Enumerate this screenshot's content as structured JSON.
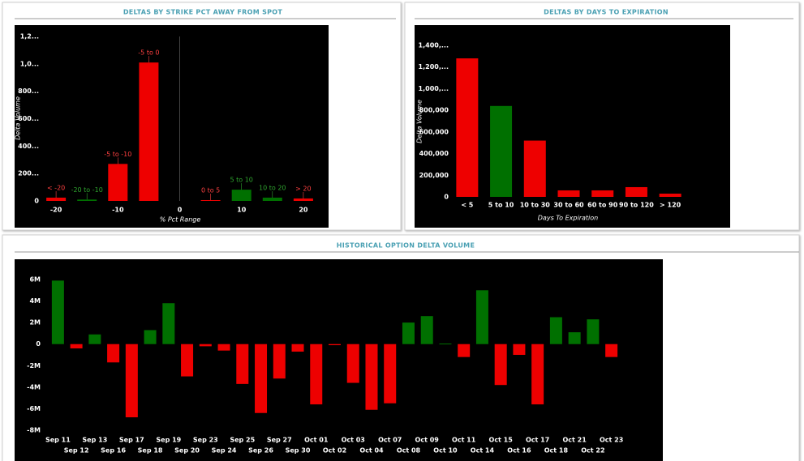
{
  "chart_data": [
    {
      "type": "bar",
      "title": "DELTAS BY STRIKE PCT AWAY FROM SPOT",
      "categories": [
        "< -20",
        "-20 to -10",
        "-5 to -10",
        "-5 to 0",
        "0 to 5",
        "5 to 10",
        "10 to 20",
        "> 20"
      ],
      "x": [
        -20,
        -15,
        -10,
        -5,
        5,
        10,
        15,
        20
      ],
      "values": [
        24000,
        10000,
        270000,
        1010000,
        6000,
        82000,
        24000,
        18000
      ],
      "colors": [
        "#ee0000",
        "#007000",
        "#ee0000",
        "#ee0000",
        "#ee0000",
        "#007000",
        "#007000",
        "#ee0000"
      ],
      "label_colors": [
        "#ff4040",
        "#2fa52f",
        "#ff4040",
        "#ff4040",
        "#ff4040",
        "#2fa52f",
        "#2fa52f",
        "#ff4040"
      ],
      "xlim": [
        -25,
        25
      ],
      "xticks": [
        -20,
        -10,
        0,
        10,
        20
      ],
      "ylim": [
        0,
        1200000
      ],
      "yticks": [
        0,
        {
          "value": 200000,
          "label": "200..."
        },
        {
          "value": 400000,
          "label": "400..."
        },
        {
          "value": 600000,
          "label": "600..."
        },
        {
          "value": 800000,
          "label": "800..."
        },
        {
          "value": 1000000,
          "label": "1,0..."
        },
        {
          "value": 1200000,
          "label": "1,2..."
        }
      ],
      "xlabel": "% Pct Range",
      "ylabel": "Delta Volume"
    },
    {
      "type": "bar",
      "title": "DELTAS BY DAYS TO EXPIRATION",
      "categories": [
        "< 5",
        "5 to 10",
        "10 to 30",
        "30 to 60",
        "60 to 90",
        "90 to 120",
        "> 120"
      ],
      "values": [
        1280000,
        840000,
        520000,
        60000,
        60000,
        90000,
        30000
      ],
      "colors": [
        "#ee0000",
        "#007000",
        "#ee0000",
        "#ee0000",
        "#ee0000",
        "#ee0000",
        "#ee0000"
      ],
      "ylim": [
        0,
        1400000
      ],
      "yticks": [
        0,
        {
          "value": 200000,
          "label": "200,000"
        },
        {
          "value": 400000,
          "label": "400,000"
        },
        {
          "value": 600000,
          "label": "600,000"
        },
        {
          "value": 800000,
          "label": "800,000"
        },
        {
          "value": 1000000,
          "label": "1,000,..."
        },
        {
          "value": 1200000,
          "label": "1,200,..."
        },
        {
          "value": 1400000,
          "label": "1,400,..."
        }
      ],
      "xlabel": "Days To Expiration",
      "ylabel": "Delta Volume"
    },
    {
      "type": "bar",
      "title": "HISTORICAL OPTION DELTA VOLUME",
      "categories": [
        "Sep 11",
        "Sep 12",
        "Sep 13",
        "Sep 16",
        "Sep 17",
        "Sep 18",
        "Sep 19",
        "Sep 20",
        "Sep 23",
        "Sep 24",
        "Sep 25",
        "Sep 26",
        "Sep 27",
        "Sep 30",
        "Oct 01",
        "Oct 02",
        "Oct 03",
        "Oct 04",
        "Oct 07",
        "Oct 08",
        "Oct 09",
        "Oct 10",
        "Oct 11",
        "Oct 14",
        "Oct 15",
        "Oct 16",
        "Oct 17",
        "Oct 18",
        "Oct 21",
        "Oct 22",
        "Oct 23"
      ],
      "values": [
        5900000,
        -400000,
        900000,
        -1700000,
        -6800000,
        1300000,
        3800000,
        -3000000,
        -200000,
        -600000,
        -3700000,
        -6400000,
        -3200000,
        -700000,
        -5600000,
        -100000,
        -3600000,
        -6100000,
        -5500000,
        2000000,
        2600000,
        50000,
        -1200000,
        5000000,
        -3800000,
        -1000000,
        -5600000,
        2500000,
        1100000,
        2300000,
        -1200000
      ],
      "positive_color": "#007000",
      "negative_color": "#ee0000",
      "ylim": [
        -8000000,
        6000000
      ],
      "yticks": [
        {
          "value": 6000000,
          "label": "6M"
        },
        {
          "value": 4000000,
          "label": "4M"
        },
        {
          "value": 2000000,
          "label": "2M"
        },
        0,
        {
          "value": -2000000,
          "label": "-2M"
        },
        {
          "value": -4000000,
          "label": "-4M"
        },
        {
          "value": -6000000,
          "label": "-6M"
        },
        {
          "value": -8000000,
          "label": "-8M"
        }
      ]
    }
  ]
}
